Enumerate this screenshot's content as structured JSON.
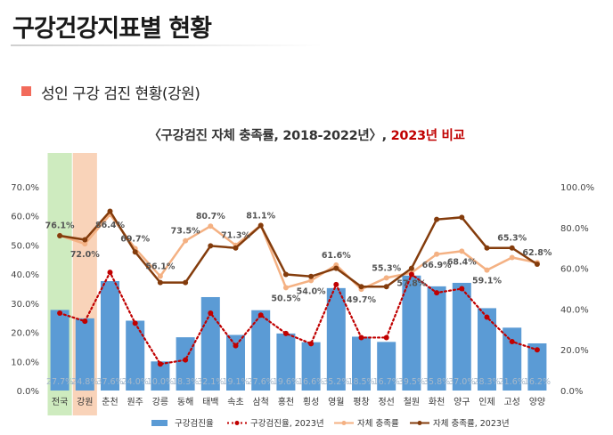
{
  "page": {
    "title": "구강건강지표별 현황",
    "section_label": "성인 구강 검진 현황(강원)",
    "chart_title_main": "〈구강검진 자체 충족률, 2018-2022년〉, ",
    "chart_title_highlight": "2023년 비교"
  },
  "colors": {
    "bar": "#5b9bd5",
    "exam_2023": "#c00000",
    "self_rate": "#f4b183",
    "self_rate_2023": "#843c0c",
    "highlight_national": "#c6e7b4",
    "highlight_gangwon": "#f8cbad",
    "section_marker": "#f26b5b"
  },
  "chart_data": {
    "type": "bar",
    "title": "〈구강검진 자체 충족률, 2018-2022년〉, 2023년 비교",
    "categories": [
      "전국",
      "강원",
      "춘천",
      "원주",
      "강릉",
      "동해",
      "태백",
      "속초",
      "삼척",
      "홍천",
      "횡성",
      "영월",
      "평창",
      "정선",
      "철원",
      "화천",
      "양구",
      "인제",
      "고성",
      "양양"
    ],
    "highlighted_categories": [
      "전국",
      "강원"
    ],
    "y_left": {
      "ylim": [
        0,
        70
      ],
      "ticks": [
        "0.0%",
        "10.0%",
        "20.0%",
        "30.0%",
        "40.0%",
        "50.0%",
        "60.0%",
        "70.0%"
      ]
    },
    "y_right": {
      "ylim": [
        0,
        100
      ],
      "ticks": [
        "0.0%",
        "20.0%",
        "40.0%",
        "60.0%",
        "80.0%",
        "100.0%"
      ]
    },
    "grid": false,
    "legend_position": "bottom",
    "series": [
      {
        "name": "구강검진율",
        "type": "bar",
        "axis": "left",
        "values": [
          27.7,
          24.8,
          37.6,
          24.0,
          10.0,
          18.3,
          32.1,
          19.1,
          27.6,
          19.6,
          16.6,
          35.2,
          18.5,
          16.7,
          39.5,
          35.8,
          37.0,
          28.3,
          21.6,
          16.2
        ],
        "labels": [
          "27.7%",
          "24.8%",
          "37.6%",
          "24.0%",
          "10.0%",
          "18.3%",
          "32.1%",
          "19.1%",
          "27.6%",
          "19.6%",
          "16.6%",
          "35.2%",
          "18.5%",
          "16.7%",
          "39.5%",
          "35.8%",
          "37.0%",
          "28.3%",
          "21.6%",
          "16.2%"
        ]
      },
      {
        "name": "구강검진율, 2023년",
        "type": "line-dotted",
        "axis": "right",
        "values": [
          38.0,
          34.0,
          58.0,
          33.0,
          13.0,
          15.0,
          38.0,
          22.0,
          37.0,
          28.0,
          23.0,
          52.0,
          26.0,
          26.0,
          57.0,
          48.0,
          50.0,
          36.0,
          24.0,
          20.0
        ]
      },
      {
        "name": "자체 충족률",
        "type": "line",
        "axis": "right",
        "values": [
          76.1,
          72.0,
          86.4,
          69.7,
          56.1,
          73.5,
          80.7,
          71.3,
          81.1,
          50.5,
          54.0,
          61.6,
          49.7,
          55.3,
          57.8,
          66.9,
          68.4,
          59.1,
          65.3,
          62.8
        ],
        "labels": [
          "76.1%",
          "72.0%",
          "86.4%",
          "69.7%",
          "56.1%",
          "73.5%",
          "80.7%",
          "71.3%",
          "81.1%",
          "50.5%",
          "54.0%",
          "61.6%",
          "49.7%",
          "55.3%",
          "57.8%",
          "66.9%",
          "68.4%",
          "59.1%",
          "65.3%",
          "62.8%"
        ]
      },
      {
        "name": "자체 충족률, 2023년",
        "type": "line",
        "axis": "right",
        "values": [
          76.0,
          74.0,
          88.0,
          68.0,
          53.0,
          53.0,
          71.0,
          70.0,
          81.0,
          57.0,
          56.0,
          60.0,
          51.0,
          51.0,
          60.0,
          84.0,
          85.0,
          70.0,
          70.0,
          62.0
        ]
      }
    ]
  }
}
